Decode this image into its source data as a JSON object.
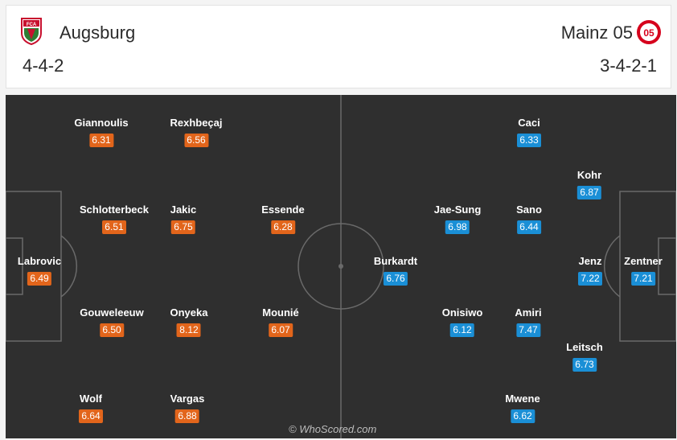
{
  "home": {
    "name": "Augsburg",
    "formation": "4-4-2",
    "crest_text": "FCA",
    "crest_color": "#c8102e",
    "rating_color": "#e2651b",
    "players": [
      {
        "name": "Giannoulis",
        "rating": "6.31"
      },
      {
        "name": "Rexhbeçaj",
        "rating": "6.56"
      },
      {
        "name": "Schlotterbeck",
        "rating": "6.51"
      },
      {
        "name": "Jakic",
        "rating": "6.75"
      },
      {
        "name": "Essende",
        "rating": "6.28"
      },
      {
        "name": "Labrovic",
        "rating": "6.49"
      },
      {
        "name": "Gouweleeuw",
        "rating": "6.50"
      },
      {
        "name": "Onyeka",
        "rating": "8.12"
      },
      {
        "name": "Mounié",
        "rating": "6.07"
      },
      {
        "name": "Wolf",
        "rating": "6.64"
      },
      {
        "name": "Vargas",
        "rating": "6.88"
      }
    ]
  },
  "away": {
    "name": "Mainz 05",
    "formation": "3-4-2-1",
    "crest_color": "#d6001c",
    "rating_color": "#1a8fd6",
    "players": [
      {
        "name": "Caci",
        "rating": "6.33"
      },
      {
        "name": "Kohr",
        "rating": "6.87"
      },
      {
        "name": "Jae-Sung",
        "rating": "6.98"
      },
      {
        "name": "Sano",
        "rating": "6.44"
      },
      {
        "name": "Burkardt",
        "rating": "6.76"
      },
      {
        "name": "Jenz",
        "rating": "7.22"
      },
      {
        "name": "Zentner",
        "rating": "7.21"
      },
      {
        "name": "Onisiwo",
        "rating": "6.12"
      },
      {
        "name": "Amiri",
        "rating": "7.47"
      },
      {
        "name": "Leitsch",
        "rating": "6.73"
      },
      {
        "name": "Mwene",
        "rating": "6.62"
      }
    ]
  },
  "watermark": "© WhoScored.com",
  "pitch_color": "#2f2f2f",
  "line_color": "#6a6a6a"
}
